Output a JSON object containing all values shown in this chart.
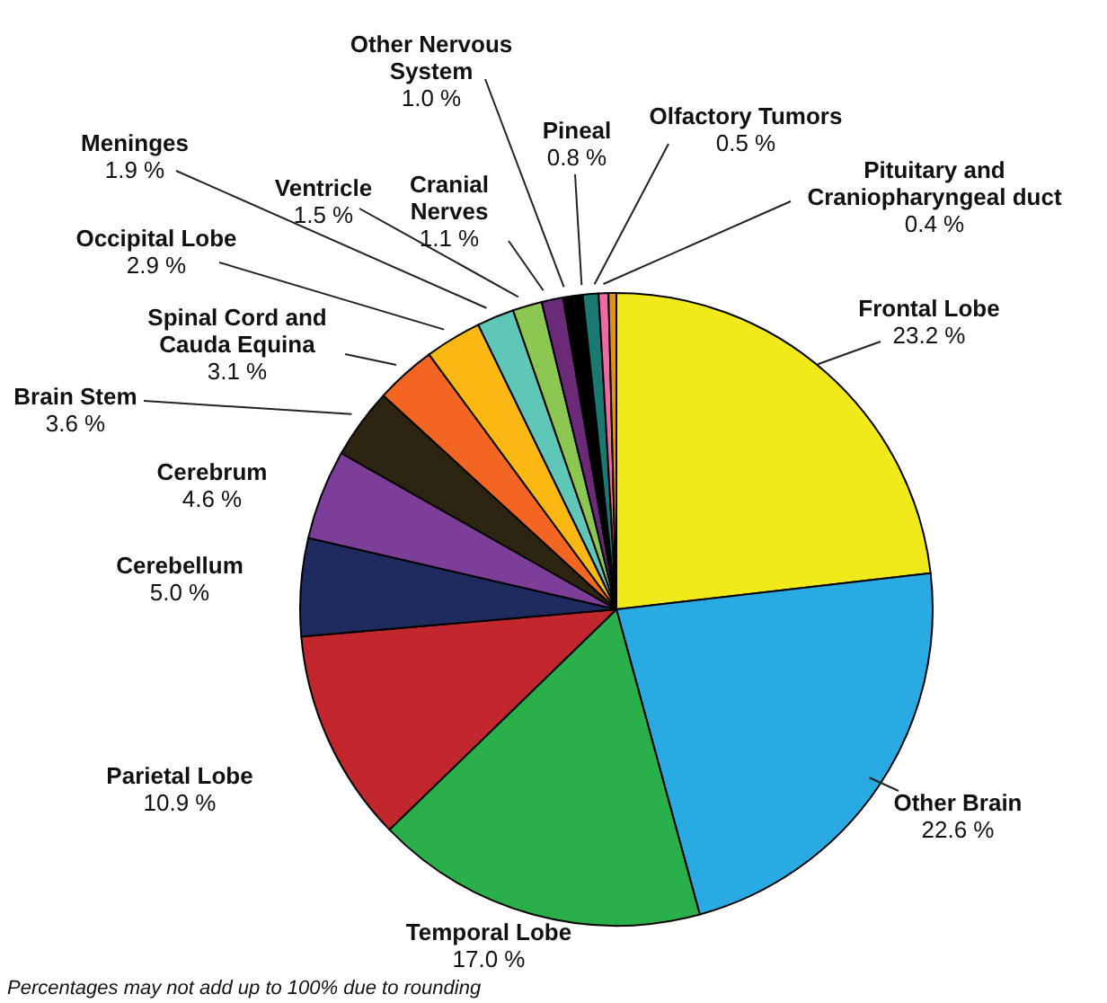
{
  "chart_data": {
    "type": "pie",
    "categories": [
      "Frontal Lobe",
      "Other Brain",
      "Temporal Lobe",
      "Parietal Lobe",
      "Cerebellum",
      "Cerebrum",
      "Brain Stem",
      "Spinal Cord and Cauda Equina",
      "Occipital Lobe",
      "Meninges",
      "Ventricle",
      "Cranial Nerves",
      "Other Nervous System",
      "Pineal",
      "Olfactory Tumors",
      "Pituitary and Craniopharyngeal duct"
    ],
    "values": [
      23.2,
      22.6,
      17.0,
      10.9,
      5.0,
      4.6,
      3.6,
      3.1,
      2.9,
      1.9,
      1.5,
      1.1,
      1.0,
      0.8,
      0.5,
      0.4
    ],
    "value_labels": [
      "23.2 %",
      "22.6 %",
      "17.0 %",
      "10.9 %",
      "5.0 %",
      "4.6 %",
      "3.6 %",
      "3.1 %",
      "2.9 %",
      "1.9 %",
      "1.5 %",
      "1.1 %",
      "1.0 %",
      "0.8 %",
      "0.5 %",
      "0.4 %"
    ],
    "colors": [
      "#f2e91a",
      "#2aaae2",
      "#29b04a",
      "#c1272d",
      "#1f2a5e",
      "#7c3e98",
      "#2e2412",
      "#f26522",
      "#fbb812",
      "#5ec7b7",
      "#8cc751",
      "#6b2a78",
      "#000000",
      "#1a7a72",
      "#ee6aa7",
      "#e09020"
    ],
    "annotations": [
      "Percentages may not add up to 100% due to rounding"
    ]
  }
}
